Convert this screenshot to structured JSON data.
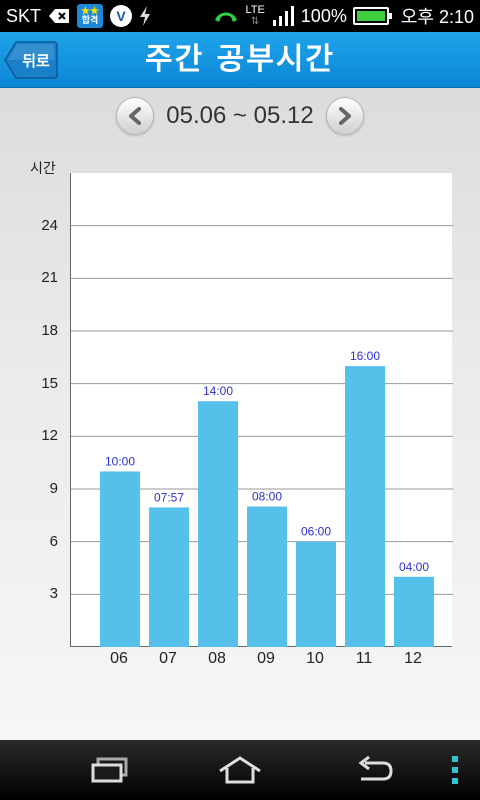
{
  "status_bar": {
    "carrier": "SKT",
    "pass_badge_label": "합격",
    "network": "LTE",
    "battery_percent": "100%",
    "time": "오후 2:10",
    "battery_level": 1.0
  },
  "header": {
    "back_label": "뒤로",
    "title": "주간 공부시간"
  },
  "week_nav": {
    "range": "05.06 ~ 05.12",
    "prev_icon": "chevron-left-icon",
    "next_icon": "chevron-right-icon"
  },
  "chart_data": {
    "type": "bar",
    "ylabel": "시간",
    "xlabel": "",
    "ylim": [
      0,
      27
    ],
    "yticks": [
      3,
      6,
      9,
      12,
      15,
      18,
      21,
      24
    ],
    "grid": true,
    "bar_color": "#55c0ea",
    "label_color": "#2f2fd8",
    "categories": [
      "06",
      "07",
      "08",
      "09",
      "10",
      "11",
      "12"
    ],
    "values": [
      10.0,
      7.95,
      14.0,
      8.0,
      6.0,
      16.0,
      4.0
    ],
    "data_labels": [
      "10:00",
      "07:57",
      "14:00",
      "08:00",
      "06:00",
      "16:00",
      "04:00"
    ]
  },
  "nav_bar": {
    "keys": [
      "recent-apps-icon",
      "home-icon",
      "back-icon",
      "menu-icon"
    ]
  },
  "colors": {
    "header_blue": "#1497e0",
    "accent": "#55c0ea"
  }
}
